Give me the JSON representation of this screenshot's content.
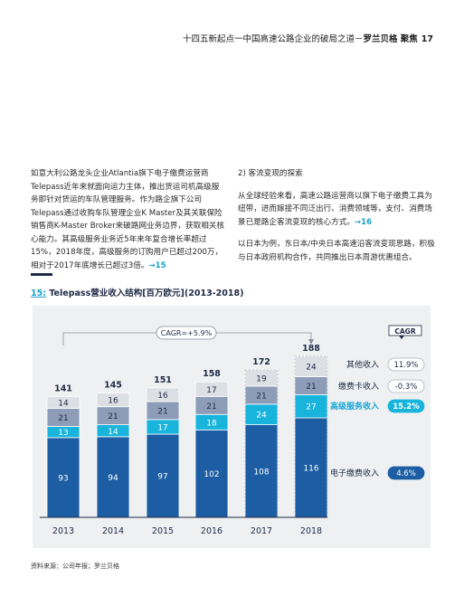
{
  "header": {
    "title": "十四五新起点一中国高速公路企业的破局之道－",
    "brand": "罗兰贝格 聚焦",
    "page_number": "17"
  },
  "left_column": {
    "paragraph": "如意大利公路龙头企业Atlantia旗下电子缴费运营商Telepass近年来就面向运力主体，推出货运司机高级服务即针对货运的车队管理服务。作为路企旗下公司Telepass通过收购车队管理企业K Master及其关联保险销售商K-Master Broker来破路网业务边界，获取相关核心能力。其高级服务业务近5年来年复合增长率超过15%，2018年度，高级服务的订购用户已超过200万，相对于2017年底增长已超过3倍。",
    "ref": "→15"
  },
  "right_column": {
    "heading": "2) 客流变现的探索",
    "paragraph1": "从全球经验来看，高速公路运营商以旗下电子缴费工具为纽带，进而嫁接不同泛出行、消费领域等，支付、消费场景已是路企客流变现的核心方式。",
    "ref1": "→16",
    "paragraph2": "以日本为例，东日本/中央日本高速沿客流变现思路，积极与日本政府机构合作，共同推出日本周游优惠组合。"
  },
  "figure": {
    "number": "15:",
    "title": " Telepass营业收入结构[百万欧元](2013-2018)"
  },
  "chart_data": {
    "type": "bar",
    "stacked": true,
    "categories": [
      "2013",
      "2014",
      "2015",
      "2016",
      "2017",
      "2018"
    ],
    "series": [
      {
        "name": "电子缴费收入",
        "values": [
          93,
          94,
          97,
          102,
          108,
          116
        ],
        "color": "#1c5da3",
        "cagr": "4.6%"
      },
      {
        "name": "高级服务收入",
        "values": [
          13,
          14,
          17,
          18,
          24,
          27
        ],
        "color": "#18b4dc",
        "cagr": "15.2%"
      },
      {
        "name": "缴费卡收入",
        "values": [
          21,
          21,
          21,
          21,
          21,
          21
        ],
        "color": "#8e9db7",
        "cagr": "-0.3%"
      },
      {
        "name": "其他收入",
        "values": [
          14,
          16,
          16,
          17,
          19,
          24
        ],
        "color": "#dcdfe3",
        "cagr": "11.9%"
      }
    ],
    "totals": [
      141,
      145,
      151,
      158,
      172,
      188
    ],
    "cagr_overall": "CAGR=+5.9%",
    "cagr_header": "CAGR",
    "highlight_series": "高级服务收入",
    "ylim": [
      0,
      188
    ]
  },
  "source": "资料来源：公司年报；罗兰贝格"
}
